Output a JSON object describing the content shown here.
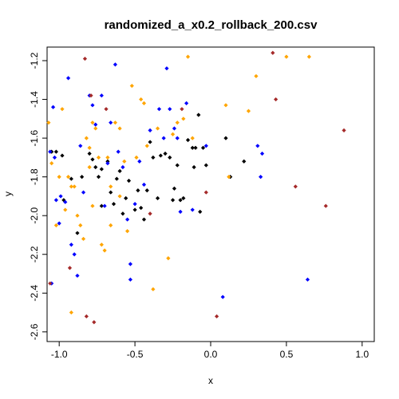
{
  "chart_data": {
    "type": "scatter",
    "title": "randomized_a_x0.2_rollback_200.csv",
    "xlabel": "x",
    "ylabel": "y",
    "xlim": [
      -1.08,
      1.08
    ],
    "ylim": [
      -2.65,
      -1.13
    ],
    "xticks": [
      -1.0,
      -0.5,
      0.0,
      0.5,
      1.0
    ],
    "xtick_labels": [
      "-1.0",
      "-0.5",
      "0.0",
      "0.5",
      "1.0"
    ],
    "yticks": [
      -2.6,
      -2.4,
      -2.2,
      -2.0,
      -1.8,
      -1.6,
      -1.4,
      -1.2
    ],
    "ytick_labels": [
      "-2.6",
      "-2.4",
      "-2.2",
      "-2.0",
      "-1.8",
      "-1.6",
      "-1.4",
      "-1.2"
    ],
    "grid": false,
    "legend": "none",
    "series": [
      {
        "color": "#000000",
        "points": [
          [
            -1.05,
            -1.67
          ],
          [
            -1.02,
            -1.67
          ],
          [
            -0.98,
            -1.69
          ],
          [
            -0.92,
            -1.81
          ],
          [
            -0.88,
            -2.09
          ],
          [
            -0.8,
            -1.68
          ],
          [
            -0.78,
            -1.71
          ],
          [
            -0.76,
            -1.75
          ],
          [
            -0.74,
            -1.8
          ],
          [
            -0.72,
            -1.76
          ],
          [
            -0.68,
            -1.72
          ],
          [
            -0.66,
            -1.88
          ],
          [
            -0.64,
            -1.94
          ],
          [
            -0.62,
            -1.81
          ],
          [
            -0.6,
            -1.77
          ],
          [
            -0.58,
            -1.99
          ],
          [
            -0.56,
            -1.91
          ],
          [
            -0.54,
            -1.82
          ],
          [
            -0.5,
            -1.97
          ],
          [
            -0.48,
            -1.87
          ],
          [
            -0.46,
            -1.96
          ],
          [
            -0.44,
            -2.02
          ],
          [
            -0.42,
            -1.87
          ],
          [
            -0.4,
            -1.62
          ],
          [
            -0.38,
            -1.7
          ],
          [
            -0.35,
            -1.91
          ],
          [
            -0.33,
            -1.69
          ],
          [
            -0.3,
            -1.68
          ],
          [
            -0.27,
            -1.7
          ],
          [
            -0.25,
            -1.92
          ],
          [
            -0.24,
            -1.86
          ],
          [
            -0.22,
            -1.74
          ],
          [
            -0.2,
            -1.92
          ],
          [
            -0.18,
            -1.91
          ],
          [
            -0.15,
            -1.61
          ],
          [
            -0.12,
            -1.65
          ],
          [
            -0.11,
            -1.75
          ],
          [
            -0.1,
            -1.65
          ],
          [
            -0.08,
            -1.48
          ],
          [
            -0.07,
            -1.98
          ],
          [
            -0.05,
            -1.65
          ],
          [
            -0.03,
            -1.74
          ],
          [
            0.1,
            -1.6
          ],
          [
            0.13,
            -1.8
          ],
          [
            0.22,
            -1.72
          ],
          [
            -0.97,
            -1.92
          ],
          [
            -0.85,
            -1.8
          ],
          [
            -0.72,
            -1.95
          ]
        ]
      },
      {
        "color": "#0000ff",
        "points": [
          [
            -1.06,
            -1.67
          ],
          [
            -1.04,
            -1.44
          ],
          [
            -1.03,
            -1.7
          ],
          [
            -1.02,
            -1.92
          ],
          [
            -1.0,
            -2.04
          ],
          [
            -0.99,
            -1.9
          ],
          [
            -0.96,
            -1.93
          ],
          [
            -0.94,
            -1.29
          ],
          [
            -0.92,
            -2.15
          ],
          [
            -0.88,
            -2.31
          ],
          [
            -0.86,
            -1.64
          ],
          [
            -0.84,
            -1.88
          ],
          [
            -0.8,
            -1.38
          ],
          [
            -0.78,
            -1.43
          ],
          [
            -0.76,
            -1.53
          ],
          [
            -0.72,
            -1.38
          ],
          [
            -0.7,
            -1.95
          ],
          [
            -0.68,
            -1.73
          ],
          [
            -0.66,
            -1.52
          ],
          [
            -0.63,
            -1.22
          ],
          [
            -0.61,
            -1.67
          ],
          [
            -0.58,
            -1.75
          ],
          [
            -0.55,
            -2.02
          ],
          [
            -0.53,
            -2.33
          ],
          [
            -0.5,
            -1.94
          ],
          [
            -0.47,
            -1.72
          ],
          [
            -0.44,
            -1.84
          ],
          [
            -0.4,
            -1.56
          ],
          [
            -0.34,
            -1.45
          ],
          [
            -0.31,
            -1.6
          ],
          [
            -0.29,
            -1.24
          ],
          [
            -0.27,
            -1.45
          ],
          [
            -0.24,
            -1.55
          ],
          [
            -0.22,
            -1.6
          ],
          [
            -0.2,
            -1.98
          ],
          [
            -0.16,
            -1.42
          ],
          [
            -0.12,
            -1.97
          ],
          [
            -0.03,
            -1.64
          ],
          [
            0.08,
            -2.42
          ],
          [
            0.31,
            -1.64
          ],
          [
            0.34,
            -1.68
          ],
          [
            0.33,
            -1.8
          ],
          [
            0.64,
            -2.33
          ],
          [
            -0.53,
            -2.25
          ],
          [
            -0.9,
            -2.2
          ],
          [
            -1.05,
            -2.35
          ]
        ]
      },
      {
        "color": "#ffa500",
        "points": [
          [
            -1.07,
            -1.52
          ],
          [
            -1.05,
            -1.73
          ],
          [
            -1.02,
            -2.05
          ],
          [
            -1.0,
            -1.8
          ],
          [
            -0.98,
            -1.45
          ],
          [
            -0.96,
            -1.97
          ],
          [
            -0.94,
            -1.8
          ],
          [
            -0.92,
            -2.5
          ],
          [
            -0.9,
            -1.85
          ],
          [
            -0.88,
            -2.0
          ],
          [
            -0.86,
            -2.05
          ],
          [
            -0.84,
            -2.12
          ],
          [
            -0.82,
            -1.6
          ],
          [
            -0.8,
            -1.65
          ],
          [
            -0.78,
            -1.52
          ],
          [
            -0.76,
            -1.55
          ],
          [
            -0.74,
            -1.7
          ],
          [
            -0.72,
            -2.15
          ],
          [
            -0.7,
            -2.18
          ],
          [
            -0.68,
            -1.7
          ],
          [
            -0.66,
            -1.85
          ],
          [
            -0.63,
            -1.52
          ],
          [
            -0.6,
            -1.55
          ],
          [
            -0.57,
            -1.72
          ],
          [
            -0.55,
            -2.08
          ],
          [
            -0.52,
            -1.33
          ],
          [
            -0.49,
            -1.7
          ],
          [
            -0.46,
            -1.4
          ],
          [
            -0.44,
            -1.42
          ],
          [
            -0.42,
            -1.64
          ],
          [
            -0.38,
            -2.38
          ],
          [
            -0.35,
            -1.55
          ],
          [
            -0.28,
            -2.22
          ],
          [
            -0.25,
            -1.58
          ],
          [
            -0.22,
            -1.52
          ],
          [
            -0.18,
            -1.5
          ],
          [
            -0.15,
            -1.18
          ],
          [
            -0.12,
            -1.6
          ],
          [
            0.1,
            -1.43
          ],
          [
            0.12,
            -1.8
          ],
          [
            0.25,
            -1.46
          ],
          [
            0.3,
            -1.28
          ],
          [
            0.5,
            -1.18
          ],
          [
            0.65,
            -1.18
          ],
          [
            -0.8,
            -1.75
          ],
          [
            -0.6,
            -1.9
          ],
          [
            -0.78,
            -1.95
          ],
          [
            -0.66,
            -2.05
          ],
          [
            -0.92,
            -1.85
          ]
        ]
      },
      {
        "color": "#a52a2a",
        "points": [
          [
            -1.06,
            -2.35
          ],
          [
            -0.93,
            -2.27
          ],
          [
            -0.83,
            -1.19
          ],
          [
            -0.82,
            -2.52
          ],
          [
            -0.79,
            -1.38
          ],
          [
            -0.77,
            -2.55
          ],
          [
            -0.69,
            -1.45
          ],
          [
            -0.4,
            -1.99
          ],
          [
            -0.19,
            -1.45
          ],
          [
            -0.03,
            -1.88
          ],
          [
            0.04,
            -2.52
          ],
          [
            0.41,
            -1.16
          ],
          [
            0.43,
            -1.4
          ],
          [
            0.56,
            -1.85
          ],
          [
            0.76,
            -1.95
          ],
          [
            0.88,
            -1.56
          ]
        ]
      }
    ]
  }
}
